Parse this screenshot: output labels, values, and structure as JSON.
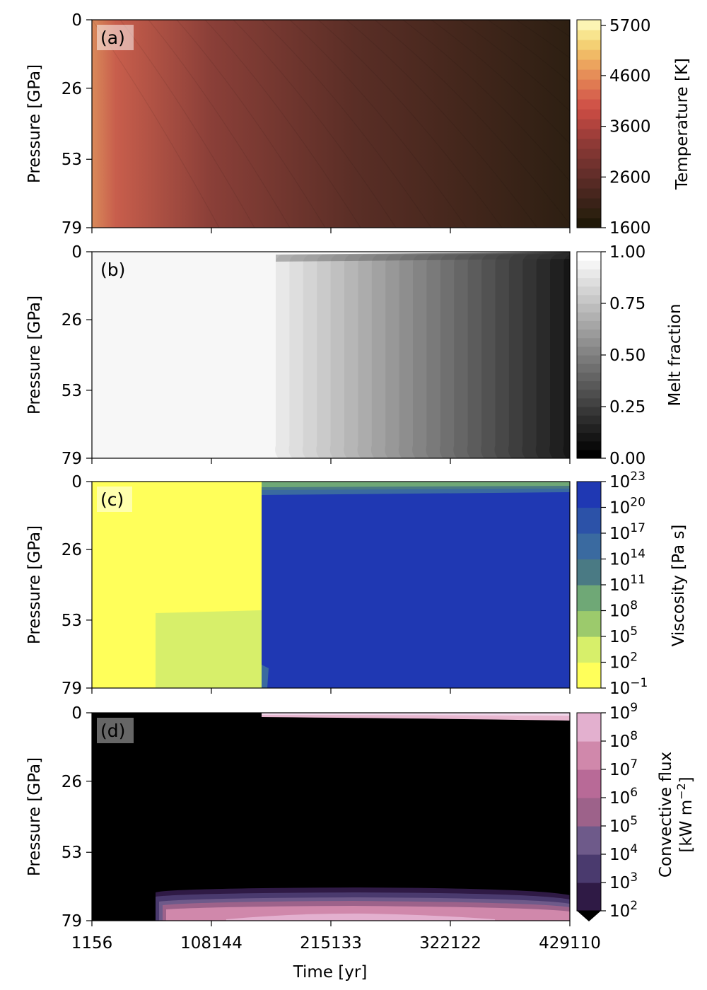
{
  "chart_data": [
    {
      "type": "heatmap",
      "panel_label": "(a)",
      "ylabel": "Pressure [GPa]",
      "y_ticks": [
        "0",
        "26",
        "53",
        "79"
      ],
      "ylim": [
        0,
        79
      ],
      "x_ticks": [
        "1156",
        "108144",
        "215133",
        "322122",
        "429110"
      ],
      "xlim": [
        1156,
        429110
      ],
      "colorbar": {
        "label": "Temperature [K]",
        "ticks": [
          "1600",
          "2600",
          "3600",
          "4600",
          "5700"
        ],
        "range": [
          1600,
          5700
        ],
        "cmap": "lajolla"
      },
      "note": "Temperature decreases with time, increases with depth"
    },
    {
      "type": "heatmap",
      "panel_label": "(b)",
      "ylabel": "Pressure [GPa]",
      "y_ticks": [
        "0",
        "26",
        "53",
        "79"
      ],
      "ylim": [
        0,
        79
      ],
      "colorbar": {
        "label": "Melt fraction",
        "ticks": [
          "1.00",
          "0.75",
          "0.50",
          "0.25",
          "0.00"
        ],
        "range": [
          0,
          1
        ],
        "cmap": "greys"
      },
      "note": "Fully molten until ~180000 yr, then declines toward ~0.1 by end"
    },
    {
      "type": "heatmap",
      "panel_label": "(c)",
      "ylabel": "Pressure [GPa]",
      "y_ticks": [
        "0",
        "26",
        "53",
        "79"
      ],
      "ylim": [
        0,
        79
      ],
      "colorbar": {
        "label": "Viscosity [Pa s]",
        "ticks": [
          "23",
          "20",
          "17",
          "14",
          "11",
          "8",
          "5",
          "2",
          "−1"
        ],
        "tick_base": "10",
        "scale": "log"
      },
      "note": "Low viscosity before ~180000 yr, ~1e21 Pa s afterwards"
    },
    {
      "type": "heatmap",
      "panel_label": "(d)",
      "ylabel": "Pressure [GPa]",
      "y_ticks": [
        "0",
        "26",
        "53",
        "79"
      ],
      "ylim": [
        0,
        79
      ],
      "xlabel": "Time [yr]",
      "x_ticks": [
        "1156",
        "108144",
        "215133",
        "322122",
        "429110"
      ],
      "colorbar": {
        "label_line1": "Convective flux",
        "label_line2_base": "[kW m",
        "label_line2_sup": "−2",
        "label_line2_end": "]",
        "ticks": [
          "9",
          "8",
          "7",
          "6",
          "5",
          "4",
          "3",
          "2"
        ],
        "tick_base": "10",
        "scale": "log"
      },
      "note": "Flux confined to thin top layer and bottom layer"
    }
  ]
}
